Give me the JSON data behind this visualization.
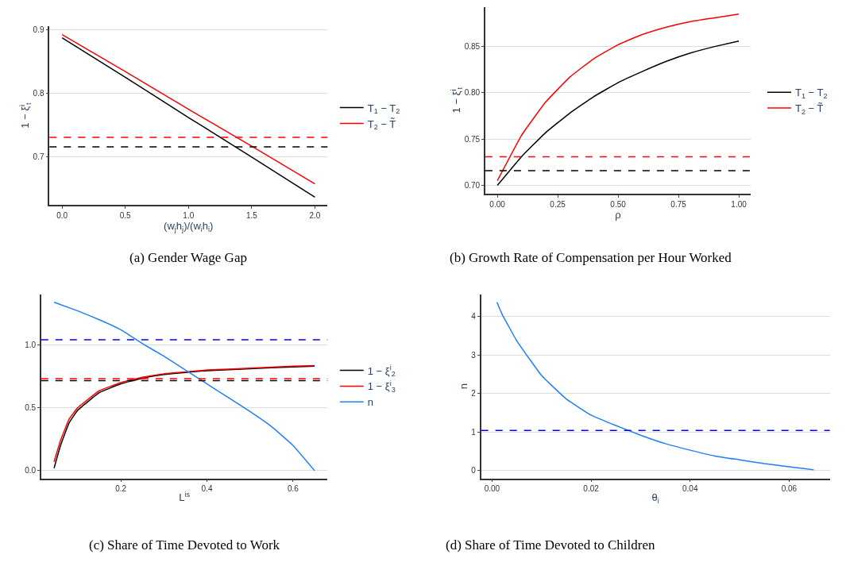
{
  "chart_data": [
    {
      "type": "line",
      "title": "(a) Gender Wage Gap",
      "xlabel": "(w$_{j}$h$_{j}$)/(w$_{i}$h$_{i}$)",
      "ylabel": "1 − ξ$^{i}$$_{t}$",
      "x": [
        0,
        0.5,
        1.0,
        1.5,
        2.0
      ],
      "series": [
        {
          "name": "T$_{1}$ − T$_{2}$",
          "color": "#000000",
          "values": [
            0.887,
            0.825,
            0.762,
            0.7,
            0.637
          ]
        },
        {
          "name": "T$_{2}$ − T̃",
          "color": "#ff0000",
          "values": [
            0.892,
            0.834,
            0.775,
            0.717,
            0.658
          ]
        }
      ],
      "ref_lines": [
        {
          "axis": "y",
          "value": 0.731,
          "color": "#ff0000",
          "line_style": "dashed"
        },
        {
          "axis": "y",
          "value": 0.716,
          "color": "#000000",
          "line_style": "dashed"
        }
      ],
      "xlim": [
        -0.1,
        2.1
      ],
      "xticks": [
        {
          "value": 0,
          "label": "0.0"
        },
        0.5,
        {
          "value": 1,
          "label": "1.0"
        },
        1.5,
        {
          "value": 2,
          "label": "2.0"
        }
      ],
      "ylim": [
        0.625,
        0.905
      ],
      "yticks": [
        0.7,
        0.8,
        0.9
      ],
      "grid": "y",
      "legend": "right",
      "line_style": "solid"
    },
    {
      "type": "line",
      "title": "(b) Growth Rate of Compensation per Hour Worked",
      "xlabel": "ρ",
      "ylabel": "1 − ξ$^{i}$$_{t}$",
      "x": [
        0,
        0.1,
        0.2,
        0.3,
        0.4,
        0.5,
        0.6,
        0.7,
        0.8,
        0.9,
        1.0
      ],
      "series": [
        {
          "name": "T$_{1}$ − T$_{2}$",
          "color": "#000000",
          "values": [
            0.7,
            0.731,
            0.757,
            0.778,
            0.796,
            0.811,
            0.823,
            0.834,
            0.843,
            0.85,
            0.856
          ]
        },
        {
          "name": "T$_{2}$ − T̃",
          "color": "#ff0000",
          "values": [
            0.705,
            0.754,
            0.79,
            0.817,
            0.837,
            0.852,
            0.863,
            0.871,
            0.877,
            0.881,
            0.885
          ]
        }
      ],
      "ref_lines": [
        {
          "axis": "y",
          "value": 0.731,
          "color": "#ff0000",
          "line_style": "dashed"
        },
        {
          "axis": "y",
          "value": 0.716,
          "color": "#000000",
          "line_style": "dashed"
        }
      ],
      "xlim": [
        -0.05,
        1.05
      ],
      "xticks": [
        {
          "value": 0,
          "label": "0.00"
        },
        0.25,
        {
          "value": 0.5,
          "label": "0.50"
        },
        0.75,
        {
          "value": 1,
          "label": "1.00"
        }
      ],
      "ylim": [
        0.691,
        0.893
      ],
      "yticks": [
        {
          "value": 0.7,
          "label": "0.70"
        },
        0.75,
        {
          "value": 0.8,
          "label": "0.80"
        },
        0.85
      ],
      "grid": "y",
      "legend": "right",
      "line_style": "solid"
    },
    {
      "type": "line",
      "title": "(c) Share of Time Devoted to Work",
      "xlabel": "L$^{is}$",
      "series": [
        {
          "name": "1 − ξ$^{i}$$_{2}$",
          "color": "#000000",
          "x": [
            0.045,
            0.06,
            0.08,
            0.1,
            0.15,
            0.2,
            0.25,
            0.3,
            0.4,
            0.5,
            0.6,
            0.65
          ],
          "values": [
            0.02,
            0.2,
            0.38,
            0.48,
            0.62,
            0.69,
            0.735,
            0.765,
            0.795,
            0.81,
            0.825,
            0.83
          ]
        },
        {
          "name": "1 − ξ$^{i}$$_{3}$",
          "color": "#ff0000",
          "x": [
            0.045,
            0.06,
            0.08,
            0.1,
            0.15,
            0.2,
            0.25,
            0.3,
            0.4,
            0.5,
            0.6,
            0.65
          ],
          "values": [
            0.07,
            0.24,
            0.41,
            0.5,
            0.635,
            0.7,
            0.742,
            0.77,
            0.8,
            0.815,
            0.83,
            0.835
          ]
        },
        {
          "name": "n",
          "color": "#1f7fff",
          "x": [
            0.045,
            0.1,
            0.15,
            0.2,
            0.25,
            0.3,
            0.35,
            0.4,
            0.45,
            0.5,
            0.55,
            0.6,
            0.65
          ],
          "values": [
            1.339,
            1.27,
            1.2,
            1.12,
            1.01,
            0.91,
            0.8,
            0.69,
            0.58,
            0.47,
            0.35,
            0.2,
            0.0
          ]
        }
      ],
      "ref_lines": [
        {
          "axis": "y",
          "value": 1.04,
          "color": "#0000ff",
          "line_style": "dashed"
        },
        {
          "axis": "y",
          "value": 0.731,
          "color": "#ff0000",
          "line_style": "dashed"
        },
        {
          "axis": "y",
          "value": 0.716,
          "color": "#000000",
          "line_style": "dashed"
        }
      ],
      "xlim": [
        0.015,
        0.68
      ],
      "xticks": [
        0.2,
        0.4,
        0.6
      ],
      "ylim": [
        -0.061,
        1.403
      ],
      "yticks": [
        {
          "value": 0,
          "label": "0.0"
        },
        0.5,
        {
          "value": 1,
          "label": "1.0"
        }
      ],
      "grid": "y",
      "legend": "right",
      "line_style": "solid"
    },
    {
      "type": "line",
      "title": "(d) Share of Time Devoted to Children",
      "xlabel": "θ$_{i}$",
      "ylabel": "n",
      "series": [
        {
          "color": "#1f7fff",
          "x": [
            0.001,
            0.002,
            0.005,
            0.01,
            0.015,
            0.02,
            0.025,
            0.03,
            0.035,
            0.04,
            0.045,
            0.05,
            0.055,
            0.06,
            0.065
          ],
          "values": [
            4.37,
            4.07,
            3.37,
            2.47,
            1.86,
            1.44,
            1.17,
            0.92,
            0.7,
            0.53,
            0.38,
            0.28,
            0.18,
            0.1,
            0.02
          ]
        }
      ],
      "ref_lines": [
        {
          "axis": "y",
          "value": 1.04,
          "color": "#0000ff",
          "line_style": "dashed"
        }
      ],
      "xlim": [
        -0.0022,
        0.0682
      ],
      "xticks": [
        {
          "value": 0,
          "label": "0.00"
        },
        0.02,
        0.04,
        0.06
      ],
      "ylim": [
        -0.2,
        4.58
      ],
      "yticks": [
        0,
        1,
        2,
        3,
        4
      ],
      "grid": "y",
      "line_style": "solid"
    }
  ]
}
